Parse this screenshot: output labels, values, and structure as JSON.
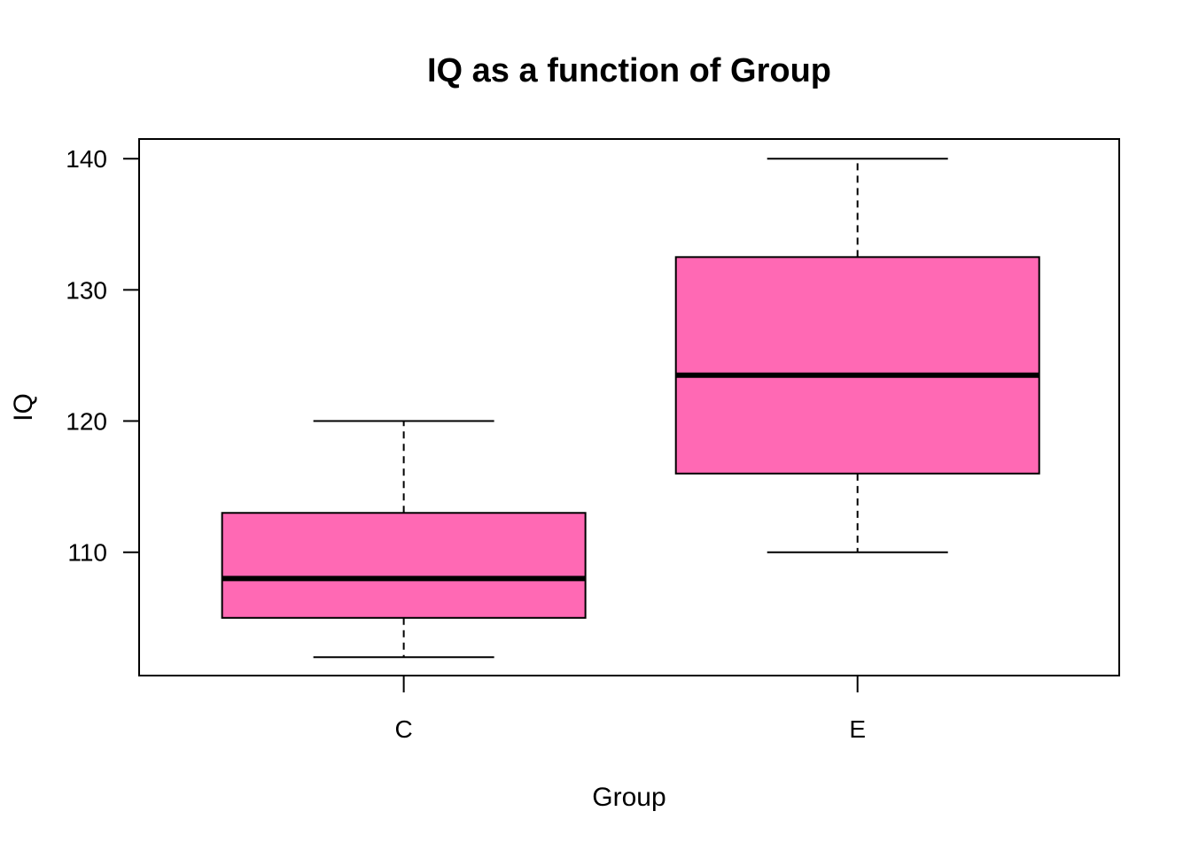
{
  "chart_data": {
    "type": "boxplot",
    "title": "IQ as a function of Group",
    "xlabel": "Group",
    "ylabel": "IQ",
    "ylim": [
      100.6,
      141.5
    ],
    "yticks": [
      110,
      120,
      130,
      140
    ],
    "ytick_labels": [
      "110",
      "120",
      "130",
      "140"
    ],
    "grid": false,
    "legend": "none",
    "box_color": "#FF69B4",
    "categories": [
      "C",
      "E"
    ],
    "boxes": [
      {
        "category": "C",
        "whisker_low": 102,
        "q1": 105,
        "median": 108,
        "q3": 113,
        "whisker_high": 120
      },
      {
        "category": "E",
        "whisker_low": 110,
        "q1": 116,
        "median": 123.5,
        "q3": 132.5,
        "whisker_high": 140
      }
    ]
  }
}
